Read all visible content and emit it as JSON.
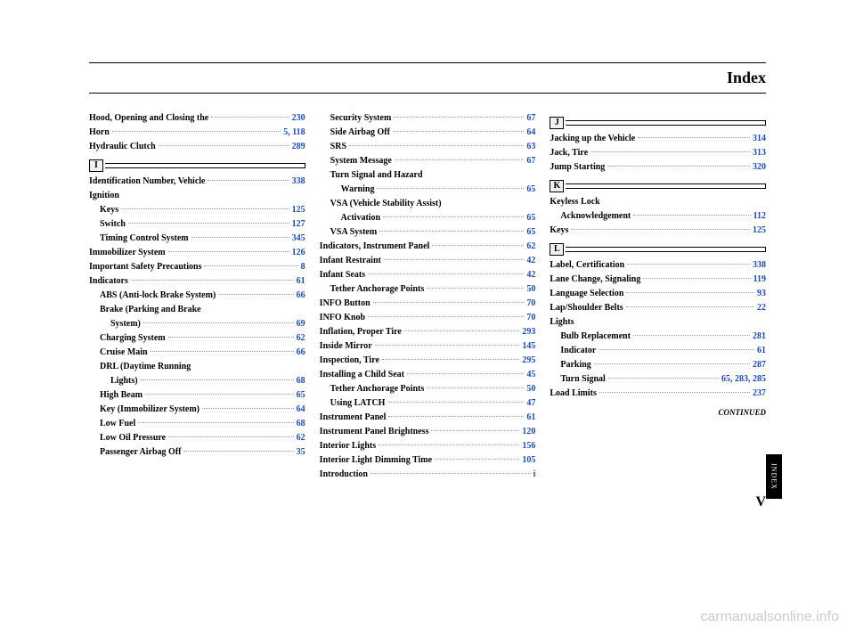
{
  "header": {
    "title": "Index"
  },
  "col1": {
    "entries": [
      {
        "label": "Hood, Opening and Closing the",
        "page": "230",
        "indent": 0
      },
      {
        "label": "Horn",
        "page": "5, 118",
        "indent": 0
      },
      {
        "label": "Hydraulic Clutch",
        "page": "289",
        "indent": 0
      }
    ],
    "section_i": "I",
    "entries_i": [
      {
        "label": "Identification Number, Vehicle",
        "page": "338",
        "indent": 0
      },
      {
        "label": "Ignition",
        "page": "",
        "indent": 0
      },
      {
        "label": "Keys",
        "page": "125",
        "indent": 1
      },
      {
        "label": "Switch",
        "page": "127",
        "indent": 1
      },
      {
        "label": "Timing Control System",
        "page": "345",
        "indent": 1
      },
      {
        "label": "Immobilizer System",
        "page": "126",
        "indent": 0
      },
      {
        "label": "Important Safety Precautions",
        "page": "8",
        "indent": 0
      },
      {
        "label": "Indicators",
        "page": "61",
        "indent": 0
      },
      {
        "label": "ABS (Anti-lock Brake System)",
        "page": "66",
        "indent": 1
      },
      {
        "label": "Brake (Parking and Brake",
        "page": "",
        "indent": 1
      },
      {
        "label": "System)",
        "page": "69",
        "indent": 2
      },
      {
        "label": "Charging System",
        "page": "62",
        "indent": 1
      },
      {
        "label": "Cruise Main",
        "page": "66",
        "indent": 1
      },
      {
        "label": "DRL (Daytime Running",
        "page": "",
        "indent": 1
      },
      {
        "label": "Lights)",
        "page": "68",
        "indent": 2
      },
      {
        "label": "High Beam",
        "page": "65",
        "indent": 1
      },
      {
        "label": "Key (Immobilizer System)",
        "page": "64",
        "indent": 1
      },
      {
        "label": "Low Fuel",
        "page": "68",
        "indent": 1
      },
      {
        "label": "Low Oil Pressure",
        "page": "62",
        "indent": 1
      },
      {
        "label": "Passenger Airbag Off",
        "page": "35",
        "indent": 1
      }
    ]
  },
  "col2": {
    "entries": [
      {
        "label": "Security System",
        "page": "67",
        "indent": 1
      },
      {
        "label": "Side Airbag Off",
        "page": "64",
        "indent": 1
      },
      {
        "label": "SRS",
        "page": "63",
        "indent": 1
      },
      {
        "label": "System Message",
        "page": "67",
        "indent": 1
      },
      {
        "label": "Turn Signal and Hazard",
        "page": "",
        "indent": 1
      },
      {
        "label": "Warning",
        "page": "65",
        "indent": 2
      },
      {
        "label": "VSA (Vehicle Stability Assist)",
        "page": "",
        "indent": 1
      },
      {
        "label": "Activation",
        "page": "65",
        "indent": 2
      },
      {
        "label": "VSA System",
        "page": "65",
        "indent": 1
      },
      {
        "label": "Indicators, Instrument Panel",
        "page": "62",
        "indent": 0
      },
      {
        "label": "Infant Restraint",
        "page": "42",
        "indent": 0
      },
      {
        "label": "Infant Seats",
        "page": "42",
        "indent": 0
      },
      {
        "label": "Tether Anchorage Points",
        "page": "50",
        "indent": 1
      },
      {
        "label": "INFO Button",
        "page": "70",
        "indent": 0
      },
      {
        "label": "INFO Knob",
        "page": "70",
        "indent": 0
      },
      {
        "label": "Inflation, Proper Tire",
        "page": "293",
        "indent": 0
      },
      {
        "label": "Inside Mirror",
        "page": "145",
        "indent": 0
      },
      {
        "label": "Inspection, Tire",
        "page": "295",
        "indent": 0
      },
      {
        "label": "Installing a Child Seat",
        "page": "45",
        "indent": 0
      },
      {
        "label": "Tether Anchorage Points",
        "page": "50",
        "indent": 1
      },
      {
        "label": "Using LATCH",
        "page": "47",
        "indent": 1
      },
      {
        "label": "Instrument Panel",
        "page": "61",
        "indent": 0
      },
      {
        "label": "Instrument Panel Brightness",
        "page": "120",
        "indent": 0
      },
      {
        "label": "Interior Lights",
        "page": "156",
        "indent": 0
      },
      {
        "label": "Interior Light Dimming Time",
        "page": "105",
        "indent": 0
      },
      {
        "label": "Introduction",
        "page": "i",
        "indent": 0
      }
    ]
  },
  "col3": {
    "section_j": "J",
    "entries_j": [
      {
        "label": "Jacking up the Vehicle",
        "page": "314",
        "indent": 0
      },
      {
        "label": "Jack, Tire",
        "page": "313",
        "indent": 0
      },
      {
        "label": "Jump Starting",
        "page": "320",
        "indent": 0
      }
    ],
    "section_k": "K",
    "entries_k": [
      {
        "label": "Keyless Lock",
        "page": "",
        "indent": 0
      },
      {
        "label": "Acknowledgement",
        "page": "112",
        "indent": 1
      },
      {
        "label": "Keys",
        "page": "125",
        "indent": 0
      }
    ],
    "section_l": "L",
    "entries_l": [
      {
        "label": "Label, Certification",
        "page": "338",
        "indent": 0
      },
      {
        "label": "Lane Change, Signaling",
        "page": "119",
        "indent": 0
      },
      {
        "label": "Language Selection",
        "page": "93",
        "indent": 0
      },
      {
        "label": "Lap/Shoulder Belts",
        "page": "22",
        "indent": 0
      },
      {
        "label": "Lights",
        "page": "",
        "indent": 0
      },
      {
        "label": "Bulb Replacement",
        "page": "281",
        "indent": 1
      },
      {
        "label": "Indicator",
        "page": "61",
        "indent": 1
      },
      {
        "label": "Parking",
        "page": "287",
        "indent": 1
      },
      {
        "label": "Turn Signal",
        "page": "65, 283, 285",
        "indent": 1
      },
      {
        "label": "Load Limits",
        "page": "237",
        "indent": 0
      }
    ]
  },
  "continued": "CONTINUED",
  "pageNum": "V",
  "sideTab": "INDEX",
  "watermark": "carmanualsonline.info"
}
